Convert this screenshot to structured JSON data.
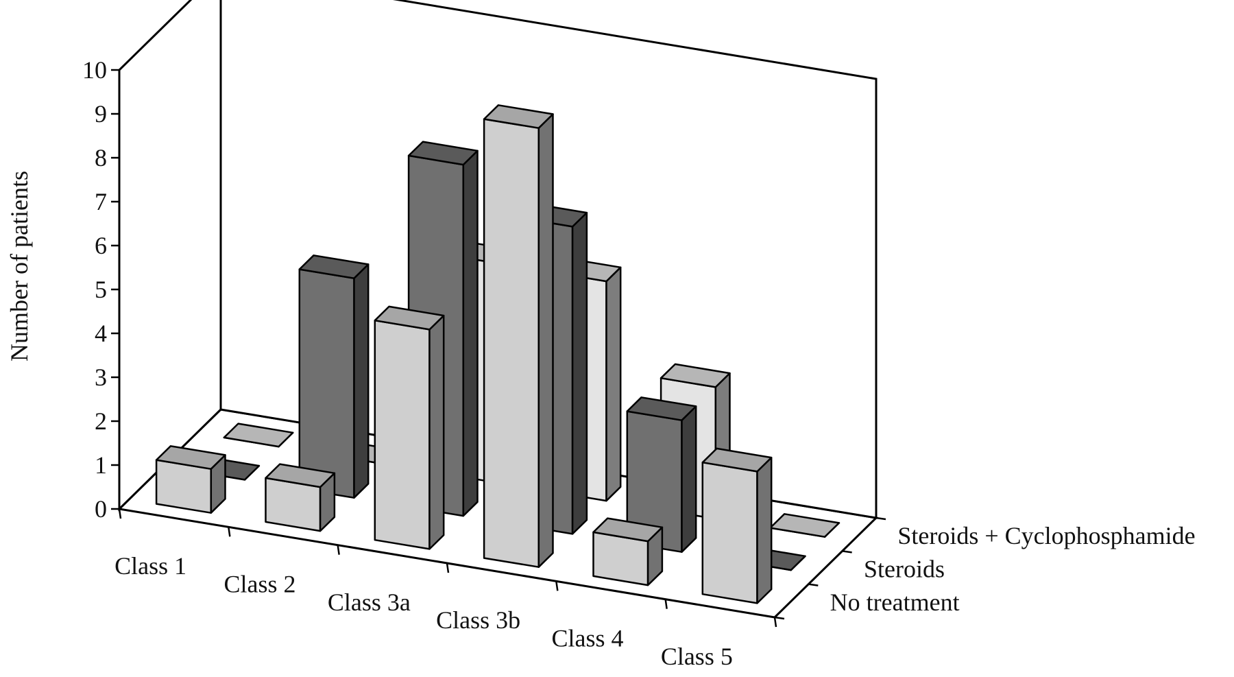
{
  "chart_data": {
    "type": "bar",
    "subtype": "3d-column",
    "title": "",
    "ylabel": "Number of patients",
    "xlabel": "",
    "ylim": [
      0,
      10
    ],
    "yticks": [
      0,
      1,
      2,
      3,
      4,
      5,
      6,
      7,
      8,
      9,
      10
    ],
    "categories": [
      "Class 1",
      "Class 2",
      "Class 3a",
      "Class 3b",
      "Class 4",
      "Class 5"
    ],
    "series": [
      {
        "name": "No treatment",
        "values": [
          1,
          1,
          5,
          10,
          1,
          3
        ],
        "color": "#cfcfcf"
      },
      {
        "name": "Steroids",
        "values": [
          0,
          5,
          8,
          7,
          3,
          0
        ],
        "color": "#707070"
      },
      {
        "name": "Steroids + Cyclophosphamide",
        "values": [
          0,
          0,
          5,
          5,
          3,
          0
        ],
        "color": "#e4e4e4"
      }
    ],
    "grid": false,
    "legend": "none"
  }
}
